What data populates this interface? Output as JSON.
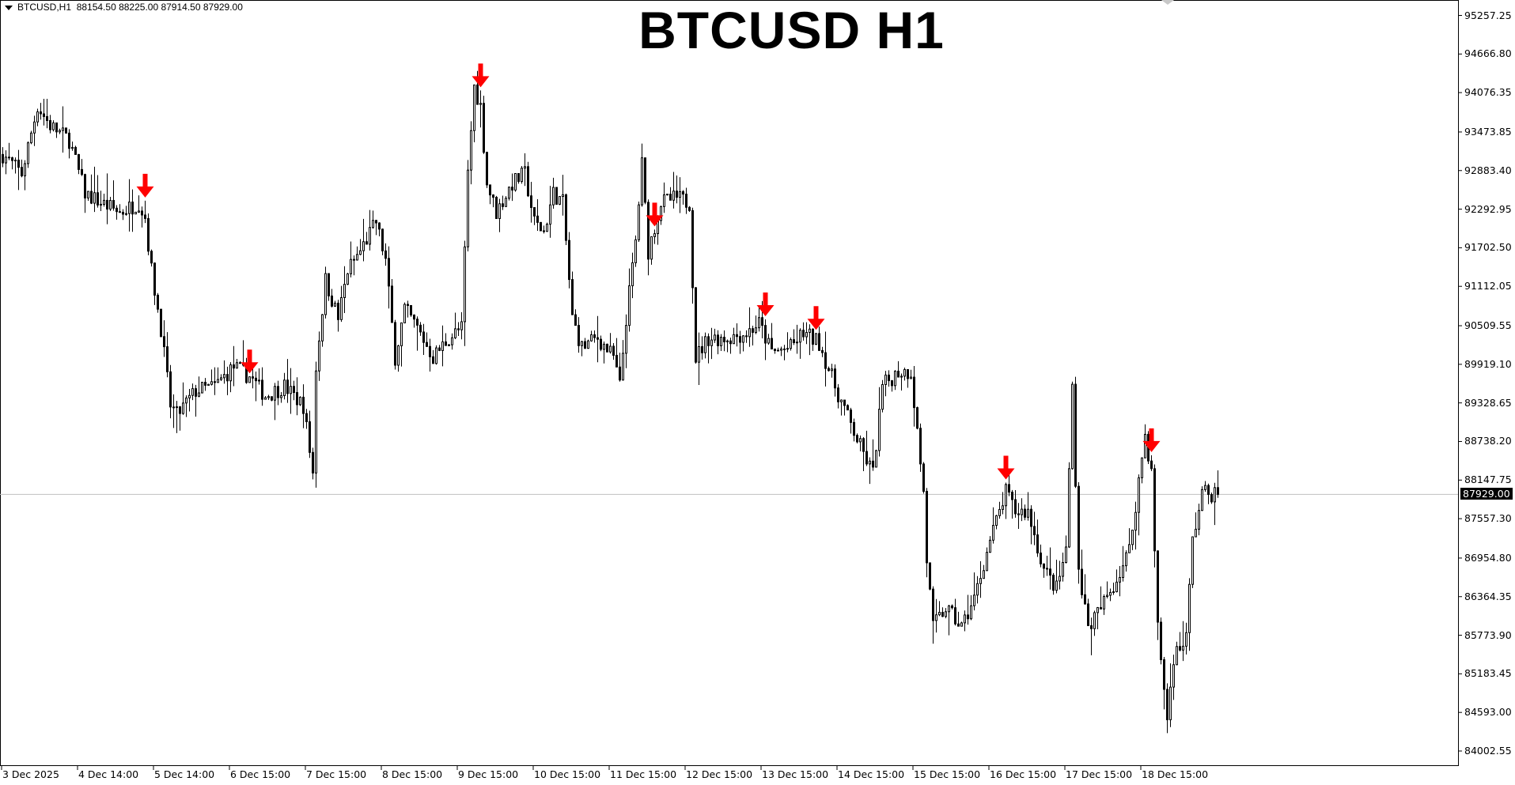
{
  "header": {
    "symbol": "BTCUSD,H1",
    "ohlc": "88154.50 88225.00 87914.50 87929.00"
  },
  "chart_data": {
    "type": "candlestick",
    "title": "BTCUSD H1",
    "current_price": 87929.0,
    "ylim": [
      84002.55,
      95257.25
    ],
    "price_ticks": [
      "95257.25",
      "94666.80",
      "94076.35",
      "93473.85",
      "92883.40",
      "92292.95",
      "91702.50",
      "91112.05",
      "90509.55",
      "89919.10",
      "89328.65",
      "88738.20",
      "88147.75",
      "87557.30",
      "86954.80",
      "86364.35",
      "85773.90",
      "85183.45",
      "84593.00",
      "84002.55"
    ],
    "time_ticks": [
      "3 Dec 2025",
      "4 Dec 14:00",
      "5 Dec 14:00",
      "6 Dec 15:00",
      "7 Dec 15:00",
      "8 Dec 15:00",
      "9 Dec 15:00",
      "10 Dec 15:00",
      "11 Dec 15:00",
      "12 Dec 15:00",
      "13 Dec 15:00",
      "14 Dec 15:00",
      "15 Dec 15:00",
      "16 Dec 15:00",
      "17 Dec 15:00",
      "18 Dec 15:00"
    ],
    "bars_per_tick": 24,
    "close_path_by_bar": [
      [
        0,
        93130
      ],
      [
        6,
        92835
      ],
      [
        11,
        93869
      ],
      [
        15,
        93573
      ],
      [
        21,
        93352
      ],
      [
        26,
        92539
      ],
      [
        31,
        92392
      ],
      [
        37,
        92244
      ],
      [
        43,
        92392
      ],
      [
        45,
        92170
      ],
      [
        47,
        91358
      ],
      [
        50,
        90472
      ],
      [
        53,
        89290
      ],
      [
        55,
        89142
      ],
      [
        61,
        89511
      ],
      [
        67,
        89585
      ],
      [
        73,
        89881
      ],
      [
        78,
        89733
      ],
      [
        83,
        89438
      ],
      [
        89,
        89585
      ],
      [
        95,
        89290
      ],
      [
        98,
        88256
      ],
      [
        99,
        89881
      ],
      [
        102,
        91210
      ],
      [
        106,
        90619
      ],
      [
        109,
        91358
      ],
      [
        113,
        91653
      ],
      [
        118,
        92096
      ],
      [
        121,
        91505
      ],
      [
        124,
        90028
      ],
      [
        127,
        90767
      ],
      [
        131,
        90472
      ],
      [
        136,
        90028
      ],
      [
        141,
        90324
      ],
      [
        145,
        90472
      ],
      [
        147,
        92835
      ],
      [
        149,
        94164
      ],
      [
        151,
        93869
      ],
      [
        153,
        92687
      ],
      [
        156,
        92244
      ],
      [
        161,
        92687
      ],
      [
        165,
        92835
      ],
      [
        168,
        92096
      ],
      [
        171,
        91949
      ],
      [
        174,
        92539
      ],
      [
        177,
        92392
      ],
      [
        180,
        90619
      ],
      [
        183,
        90176
      ],
      [
        188,
        90324
      ],
      [
        193,
        90028
      ],
      [
        195,
        89585
      ],
      [
        197,
        90619
      ],
      [
        200,
        91801
      ],
      [
        202,
        92982
      ],
      [
        204,
        91653
      ],
      [
        208,
        92392
      ],
      [
        213,
        92465
      ],
      [
        217,
        92392
      ],
      [
        219,
        90028
      ],
      [
        223,
        90324
      ],
      [
        229,
        90324
      ],
      [
        235,
        90398
      ],
      [
        239,
        90545
      ],
      [
        243,
        90102
      ],
      [
        249,
        90176
      ],
      [
        253,
        90398
      ],
      [
        258,
        90250
      ],
      [
        263,
        89585
      ],
      [
        268,
        88995
      ],
      [
        272,
        88551
      ],
      [
        275,
        88256
      ],
      [
        278,
        89585
      ],
      [
        283,
        89807
      ],
      [
        287,
        89807
      ],
      [
        291,
        87961
      ],
      [
        292,
        86927
      ],
      [
        294,
        85893
      ],
      [
        298,
        86188
      ],
      [
        303,
        85893
      ],
      [
        307,
        86336
      ],
      [
        312,
        87222
      ],
      [
        317,
        87961
      ],
      [
        320,
        87665
      ],
      [
        324,
        87665
      ],
      [
        329,
        86779
      ],
      [
        333,
        86484
      ],
      [
        336,
        87074
      ],
      [
        338,
        89585
      ],
      [
        340,
        86779
      ],
      [
        343,
        85893
      ],
      [
        347,
        86188
      ],
      [
        352,
        86631
      ],
      [
        356,
        87074
      ],
      [
        361,
        88847
      ],
      [
        363,
        88256
      ],
      [
        365,
        85893
      ],
      [
        368,
        84490
      ],
      [
        370,
        85450
      ],
      [
        374,
        85745
      ],
      [
        376,
        87222
      ],
      [
        379,
        87961
      ],
      [
        384,
        87929
      ]
    ],
    "sell_signal_bars": [
      45,
      78,
      151,
      206,
      241,
      257,
      317,
      363
    ],
    "colors": {
      "candle": "#000000",
      "bull_fill": "#ffffff",
      "signal_arrow": "#ff0000",
      "price_line": "#c0c0c0"
    },
    "grid": false
  }
}
